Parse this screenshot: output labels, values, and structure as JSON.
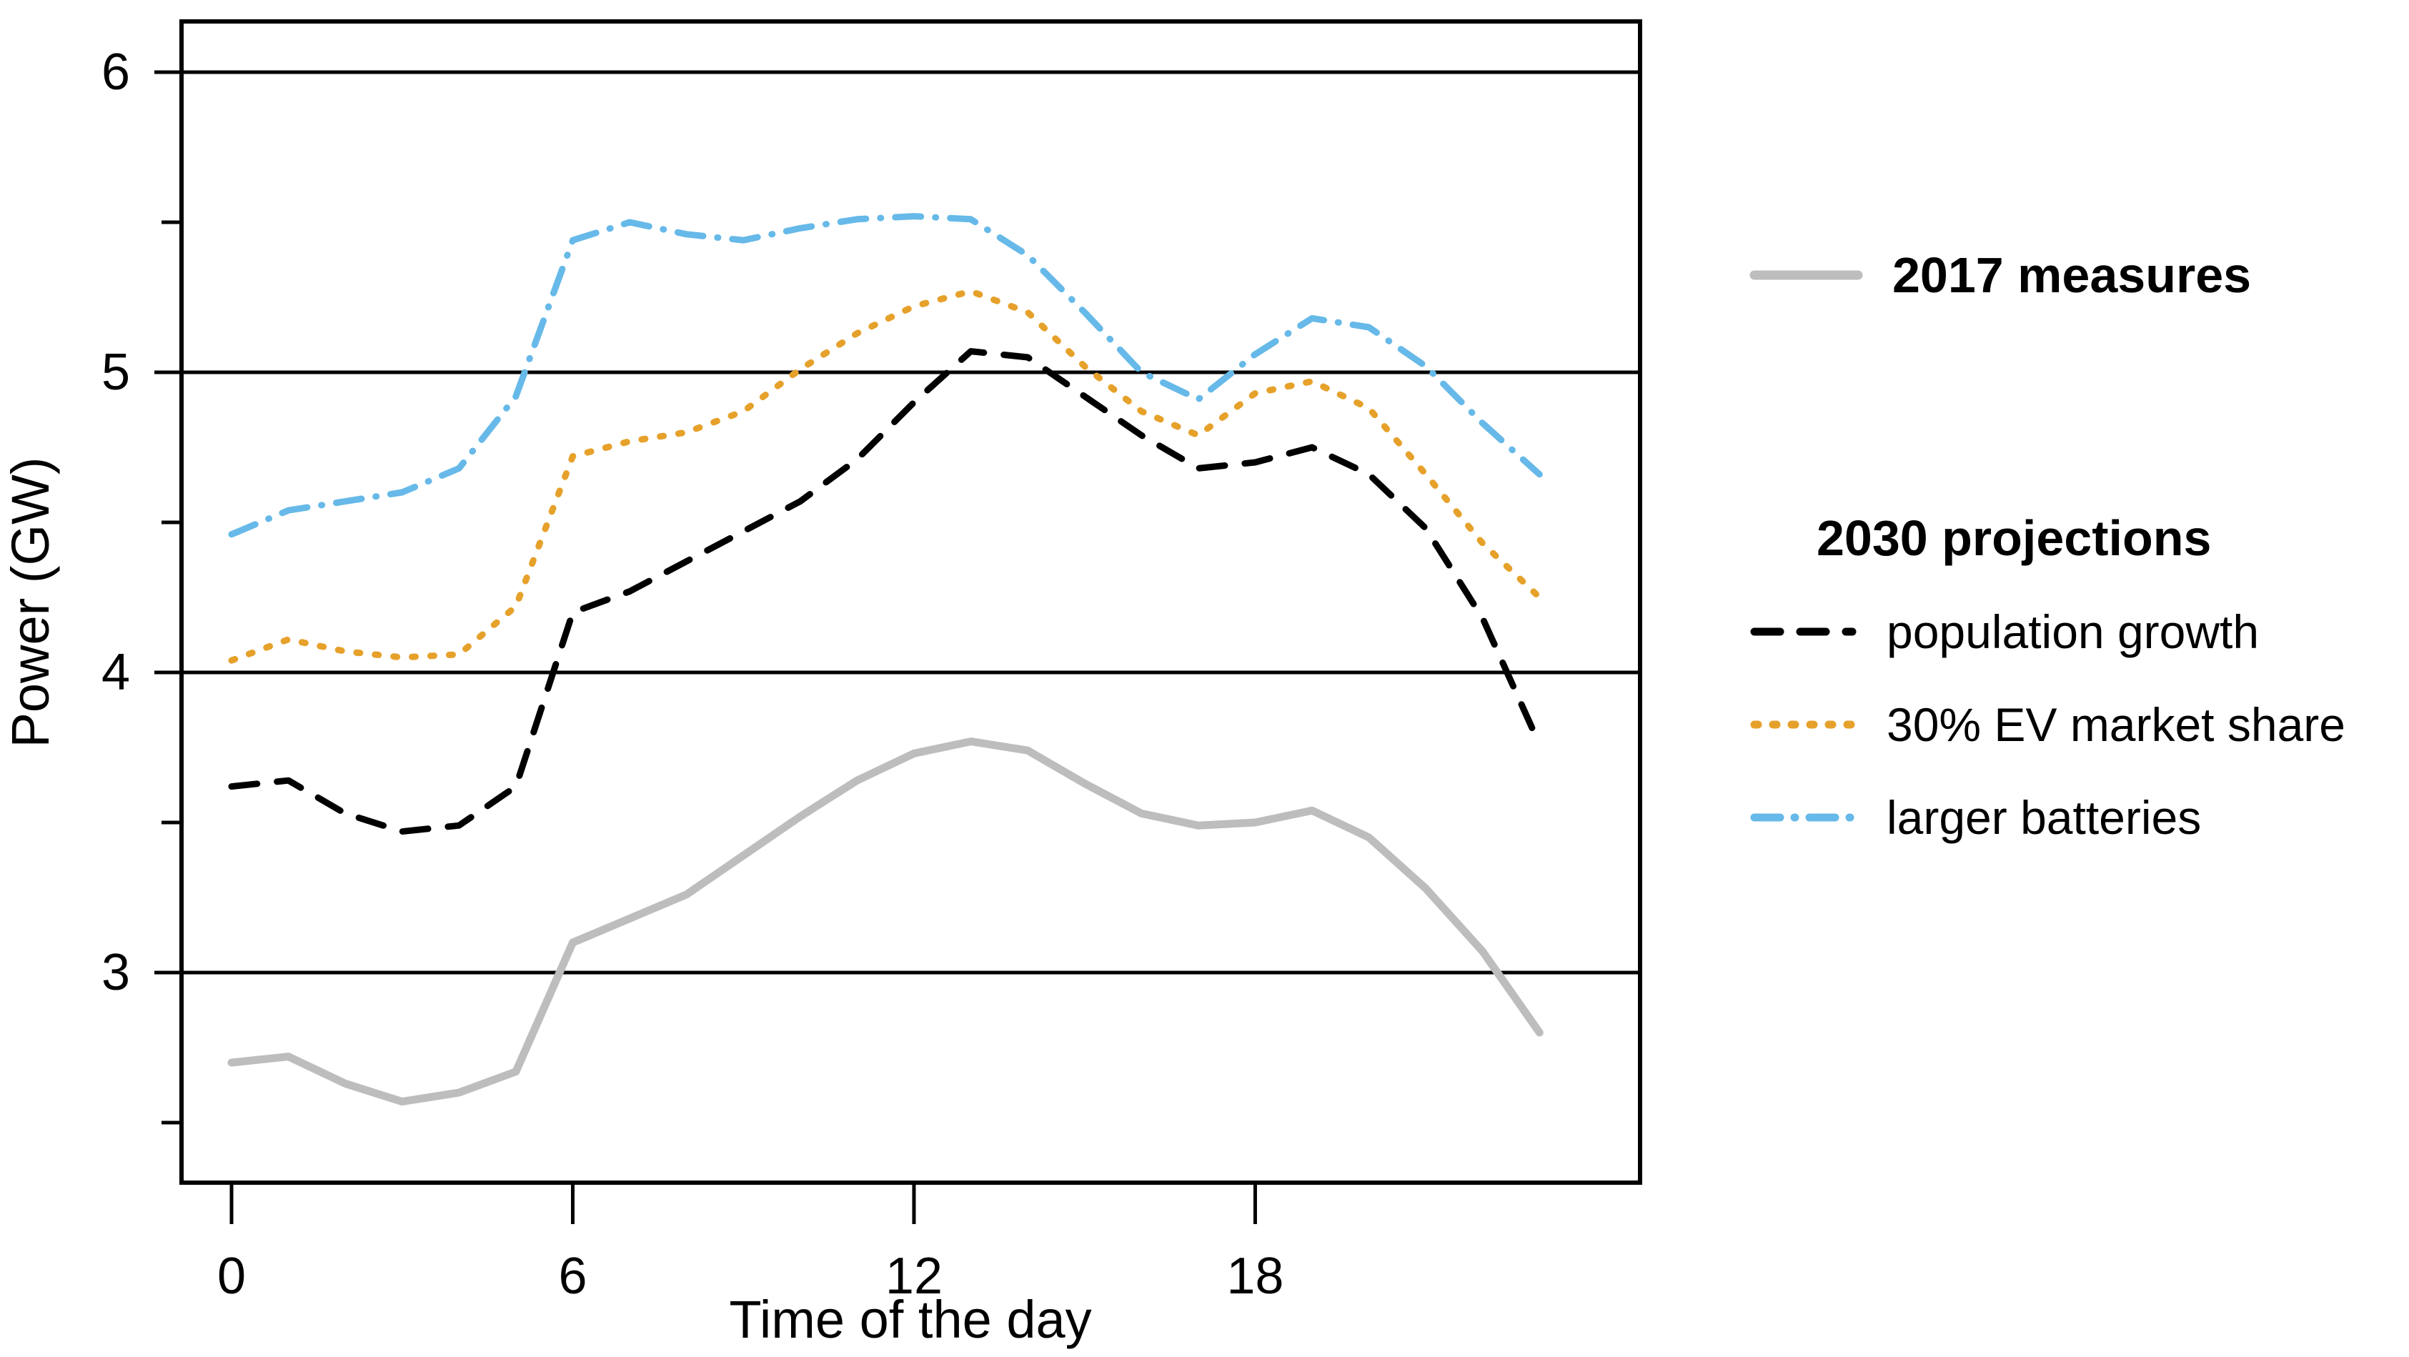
{
  "chart_data": {
    "type": "line",
    "title": "",
    "xlabel": "Time of the day",
    "ylabel": "Power (GW)",
    "x": [
      0,
      1,
      2,
      3,
      4,
      5,
      6,
      7,
      8,
      9,
      10,
      11,
      12,
      13,
      14,
      15,
      16,
      17,
      18,
      19,
      20,
      21,
      22,
      23
    ],
    "xlim": [
      -0.9,
      24.8
    ],
    "ylim": [
      2.3,
      6.17
    ],
    "x_ticks": [
      0,
      6,
      12,
      18
    ],
    "y_major_ticks": [
      3,
      4,
      5,
      6
    ],
    "y_minor_ticks": [
      2.5,
      3.5,
      4.5,
      5.5
    ],
    "grid": "horizontal-major",
    "legend_position": "right",
    "series": [
      {
        "name": "2017 measures",
        "color": "#bdbdbd",
        "dash": "solid",
        "width": 11,
        "values": [
          2.7,
          2.72,
          2.63,
          2.57,
          2.6,
          2.67,
          3.1,
          3.18,
          3.26,
          3.39,
          3.52,
          3.64,
          3.73,
          3.77,
          3.74,
          3.63,
          3.53,
          3.49,
          3.5,
          3.54,
          3.45,
          3.28,
          3.07,
          2.8
        ]
      },
      {
        "name": "population growth",
        "color": "#000000",
        "dash": "long-dash",
        "width": 9,
        "values": [
          3.62,
          3.64,
          3.53,
          3.47,
          3.49,
          3.62,
          4.2,
          4.27,
          4.37,
          4.47,
          4.57,
          4.71,
          4.9,
          5.07,
          5.05,
          4.92,
          4.79,
          4.68,
          4.7,
          4.75,
          4.66,
          4.48,
          4.18,
          3.76
        ]
      },
      {
        "name": "30% EV market share",
        "color": "#e6a12b",
        "dash": "dotted",
        "width": 9,
        "values": [
          4.04,
          4.11,
          4.07,
          4.05,
          4.06,
          4.22,
          4.72,
          4.77,
          4.8,
          4.87,
          5.01,
          5.13,
          5.22,
          5.27,
          5.2,
          5.02,
          4.87,
          4.79,
          4.93,
          4.97,
          4.88,
          4.66,
          4.43,
          4.25
        ]
      },
      {
        "name": "larger batteries",
        "color": "#66b9e8",
        "dash": "dash-dot",
        "width": 9,
        "values": [
          4.46,
          4.54,
          4.57,
          4.6,
          4.68,
          4.92,
          5.44,
          5.5,
          5.46,
          5.44,
          5.48,
          5.51,
          5.52,
          5.51,
          5.39,
          5.2,
          5.0,
          4.91,
          5.06,
          5.18,
          5.15,
          5.02,
          4.83,
          4.66
        ]
      }
    ]
  },
  "axes": {
    "x_title": "Time of the day",
    "y_title": "Power (GW)"
  },
  "legend": {
    "measures_label": "2017 measures",
    "projections_header": "2030 projections",
    "items": [
      {
        "label": "population growth",
        "series_index": 1
      },
      {
        "label": "30% EV market share",
        "series_index": 2
      },
      {
        "label": "larger batteries",
        "series_index": 3
      }
    ]
  }
}
